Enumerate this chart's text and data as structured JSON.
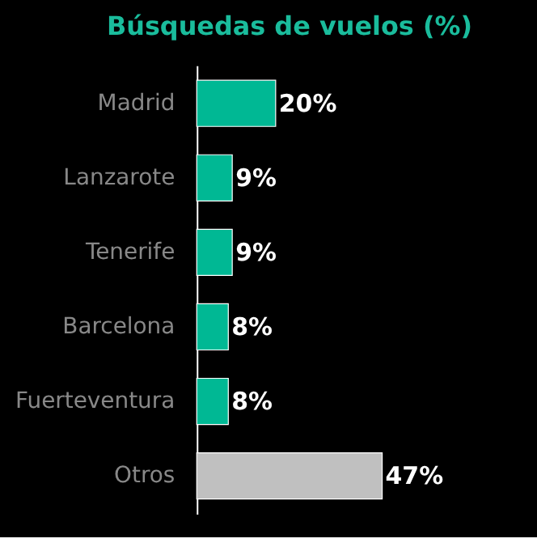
{
  "chart_data": {
    "type": "bar",
    "orientation": "horizontal",
    "title": "Búsquedas de vuelos (%)",
    "categories": [
      "Madrid",
      "Lanzarote",
      "Tenerife",
      "Barcelona",
      "Fuerteventura",
      "Otros"
    ],
    "values": [
      20,
      9,
      9,
      8,
      8,
      47
    ],
    "value_labels": [
      "20%",
      "9%",
      "9%",
      "8%",
      "8%",
      "47%"
    ],
    "colors": [
      "#00b894",
      "#00b894",
      "#00b894",
      "#00b894",
      "#00b894",
      "#c0c0c0"
    ],
    "data_labels": false
  }
}
